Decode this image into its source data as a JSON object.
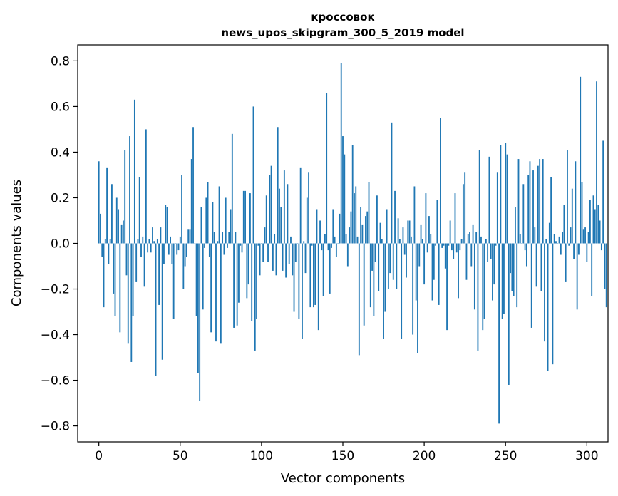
{
  "chart_data": {
    "type": "bar",
    "title": "кроссовок",
    "subtitle": "news_upos_skipgram_300_5_2019 model",
    "xlabel": "Vector components",
    "ylabel": "Components values",
    "xlim": [
      -13,
      313
    ],
    "ylim": [
      -0.87,
      0.87
    ],
    "xticks": [
      0,
      50,
      100,
      150,
      200,
      250,
      300
    ],
    "xtick_labels": [
      "0",
      "50",
      "100",
      "150",
      "200",
      "250",
      "300"
    ],
    "yticks": [
      -0.8,
      -0.6,
      -0.4,
      -0.2,
      0.0,
      0.2,
      0.4,
      0.6,
      0.8
    ],
    "ytick_labels": [
      "−0.8",
      "−0.6",
      "−0.4",
      "−0.2",
      "0.0",
      "0.2",
      "0.4",
      "0.6",
      "0.8"
    ],
    "grid": false,
    "bar_color": "#1f77b4",
    "values": [
      0.36,
      0.13,
      -0.06,
      -0.28,
      0.02,
      0.33,
      -0.09,
      0.02,
      0.26,
      -0.22,
      -0.32,
      0.2,
      0.15,
      -0.39,
      0.08,
      0.1,
      0.41,
      -0.14,
      -0.44,
      0.47,
      -0.52,
      -0.32,
      0.63,
      -0.17,
      0.02,
      0.29,
      -0.06,
      0.03,
      -0.19,
      0.5,
      -0.04,
      0.02,
      -0.04,
      0.07,
      0.01,
      -0.58,
      0.02,
      -0.27,
      0.07,
      -0.51,
      -0.09,
      0.17,
      0.16,
      -0.05,
      0.03,
      -0.09,
      -0.33,
      0.0,
      -0.05,
      -0.03,
      0.03,
      0.3,
      -0.2,
      -0.1,
      -0.06,
      0.06,
      0.06,
      0.37,
      0.51,
      0.0,
      -0.32,
      -0.57,
      -0.69,
      0.16,
      -0.29,
      -0.02,
      0.2,
      0.27,
      -0.06,
      -0.39,
      0.18,
      0.05,
      -0.43,
      0.01,
      0.25,
      -0.44,
      0.05,
      -0.05,
      0.2,
      -0.02,
      0.05,
      0.15,
      0.48,
      -0.37,
      0.05,
      -0.36,
      -0.26,
      -0.01,
      -0.04,
      0.23,
      0.23,
      -0.24,
      -0.18,
      0.22,
      -0.34,
      0.6,
      -0.47,
      -0.33,
      -0.01,
      -0.14,
      0.0,
      -0.08,
      0.07,
      0.21,
      -0.08,
      0.3,
      0.34,
      -0.12,
      0.04,
      -0.14,
      0.51,
      0.24,
      0.16,
      -0.12,
      0.32,
      -0.15,
      0.26,
      -0.09,
      0.03,
      -0.14,
      -0.3,
      -0.08,
      0.0,
      -0.33,
      0.33,
      -0.42,
      0.01,
      -0.13,
      0.2,
      0.31,
      -0.28,
      -0.01,
      -0.28,
      -0.27,
      0.15,
      -0.38,
      0.1,
      -0.03,
      -0.23,
      0.04,
      0.66,
      -0.03,
      -0.22,
      -0.02,
      0.15,
      0.03,
      -0.06,
      0.0,
      0.13,
      0.79,
      0.47,
      0.39,
      0.04,
      -0.1,
      0.07,
      0.14,
      0.43,
      0.22,
      0.25,
      0.03,
      -0.49,
      0.16,
      0.08,
      -0.36,
      0.12,
      0.14,
      0.27,
      -0.28,
      -0.12,
      -0.32,
      -0.08,
      0.21,
      -0.21,
      0.09,
      0.02,
      -0.42,
      -0.3,
      0.15,
      -0.2,
      -0.13,
      0.53,
      -0.16,
      0.23,
      -0.2,
      0.11,
      0.02,
      -0.42,
      0.07,
      -0.05,
      -0.15,
      0.1,
      0.1,
      0.03,
      -0.4,
      0.25,
      -0.25,
      -0.48,
      -0.1,
      0.08,
      0.02,
      -0.18,
      0.22,
      -0.04,
      0.12,
      0.04,
      -0.25,
      -0.16,
      -0.01,
      0.19,
      -0.27,
      0.55,
      -0.02,
      -0.01,
      -0.11,
      -0.38,
      -0.01,
      0.1,
      -0.03,
      -0.07,
      0.22,
      -0.04,
      -0.24,
      -0.03,
      0.02,
      0.26,
      0.31,
      -0.16,
      0.04,
      0.05,
      -0.1,
      0.08,
      -0.29,
      0.05,
      -0.47,
      0.41,
      0.03,
      -0.38,
      -0.33,
      0.02,
      -0.08,
      0.38,
      -0.07,
      -0.25,
      -0.18,
      -0.01,
      0.31,
      -0.79,
      0.43,
      -0.33,
      -0.31,
      0.44,
      0.39,
      -0.62,
      -0.13,
      -0.21,
      -0.23,
      0.16,
      -0.28,
      0.37,
      0.04,
      0.0,
      0.26,
      -0.03,
      -0.1,
      0.3,
      0.36,
      -0.37,
      0.32,
      0.07,
      -0.19,
      0.34,
      0.37,
      -0.21,
      0.37,
      -0.43,
      0.02,
      -0.56,
      0.09,
      0.29,
      -0.53,
      0.04,
      0.01,
      0.0,
      0.03,
      -0.05,
      0.05,
      0.17,
      -0.17,
      0.41,
      -0.01,
      0.07,
      0.24,
      -0.07,
      0.36,
      -0.29,
      -0.05,
      0.73,
      0.27,
      0.06,
      0.07,
      -0.08,
      0.05,
      0.19,
      -0.23,
      0.21,
      0.15,
      0.71,
      0.17,
      0.1,
      -0.03,
      0.45,
      -0.2,
      -0.28
    ]
  }
}
